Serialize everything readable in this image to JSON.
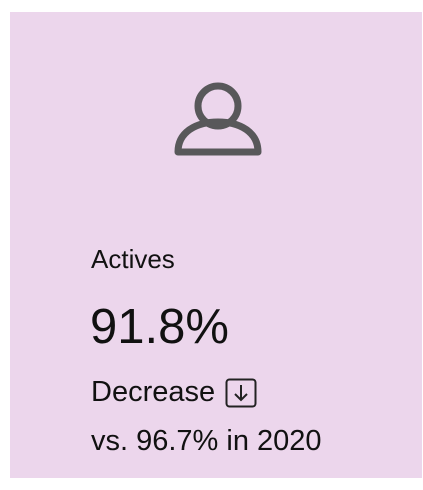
{
  "card": {
    "label": "Actives",
    "value": "91.8%",
    "trend": "Decrease",
    "comparison": "vs. 96.7% in 2020"
  }
}
